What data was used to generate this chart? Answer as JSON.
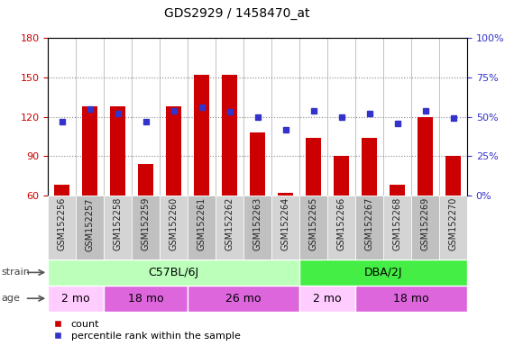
{
  "title": "GDS2929 / 1458470_at",
  "samples": [
    "GSM152256",
    "GSM152257",
    "GSM152258",
    "GSM152259",
    "GSM152260",
    "GSM152261",
    "GSM152262",
    "GSM152263",
    "GSM152264",
    "GSM152265",
    "GSM152266",
    "GSM152267",
    "GSM152268",
    "GSM152269",
    "GSM152270"
  ],
  "count_values": [
    68,
    128,
    128,
    84,
    128,
    152,
    152,
    108,
    62,
    104,
    90,
    104,
    68,
    120,
    90
  ],
  "percentile_values": [
    47,
    55,
    52,
    47,
    54,
    56,
    53,
    50,
    42,
    54,
    50,
    52,
    46,
    54,
    49
  ],
  "ylim_left": [
    60,
    180
  ],
  "ylim_right": [
    0,
    100
  ],
  "yticks_left": [
    60,
    90,
    120,
    150,
    180
  ],
  "yticks_right": [
    0,
    25,
    50,
    75,
    100
  ],
  "bar_color": "#cc0000",
  "dot_color": "#3333cc",
  "bar_bottom": 60,
  "strain_groups": [
    {
      "label": "C57BL/6J",
      "start": 0,
      "end": 8,
      "color": "#bbffbb"
    },
    {
      "label": "DBA/2J",
      "start": 9,
      "end": 14,
      "color": "#44ee44"
    }
  ],
  "age_groups": [
    {
      "label": "2 mo",
      "start": 0,
      "end": 1,
      "color": "#ffccff"
    },
    {
      "label": "18 mo",
      "start": 2,
      "end": 4,
      "color": "#dd66dd"
    },
    {
      "label": "26 mo",
      "start": 5,
      "end": 8,
      "color": "#dd66dd"
    },
    {
      "label": "2 mo",
      "start": 9,
      "end": 10,
      "color": "#ffccff"
    },
    {
      "label": "18 mo",
      "start": 11,
      "end": 14,
      "color": "#dd66dd"
    }
  ],
  "tick_label_fontsize": 7,
  "title_fontsize": 10,
  "axis_label_color_left": "#cc0000",
  "axis_label_color_right": "#3333cc",
  "grid_dotted_ticks": [
    90,
    120,
    150
  ],
  "plot_bg_color": "#ffffff",
  "xtick_bg_even": "#d4d4d4",
  "xtick_bg_odd": "#c0c0c0"
}
